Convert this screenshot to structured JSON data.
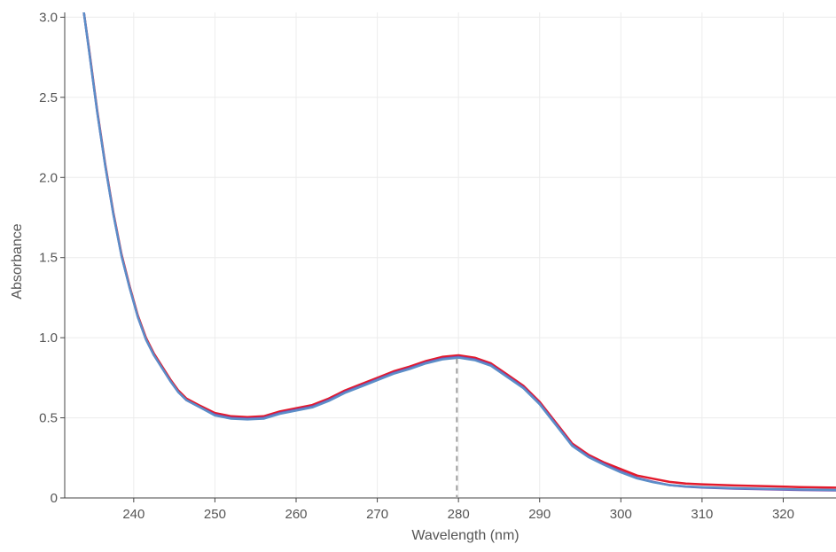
{
  "chart_data": {
    "type": "line",
    "title": "",
    "xlabel": "Wavelength (nm)",
    "ylabel": "Absorbance",
    "xlim": [
      231.5,
      326.5
    ],
    "ylim": [
      0,
      3.03
    ],
    "x_ticks": [
      240,
      250,
      260,
      270,
      280,
      290,
      300,
      310,
      320
    ],
    "y_ticks": [
      0,
      0.5,
      1.0,
      1.5,
      2.0,
      2.5,
      3.0
    ],
    "x_tick_labels": [
      "240",
      "250",
      "260",
      "270",
      "280",
      "290",
      "300",
      "310",
      "320"
    ],
    "y_tick_labels": [
      "0",
      "0.5",
      "1.0",
      "1.5",
      "2.0",
      "2.5",
      "3.0"
    ],
    "grid": true,
    "legend": "none",
    "marker_line": {
      "x": 279.8,
      "y_top": 0.87,
      "style": "dashed",
      "color": "#9e9e9e"
    },
    "series": [
      {
        "color": "#e31a2c",
        "points": [
          [
            233.8,
            3.05
          ],
          [
            234.5,
            2.8
          ],
          [
            235.5,
            2.42
          ],
          [
            236.5,
            2.08
          ],
          [
            237.5,
            1.78
          ],
          [
            238.5,
            1.52
          ],
          [
            239.5,
            1.32
          ],
          [
            240.5,
            1.14
          ],
          [
            241.5,
            1.0
          ],
          [
            242.5,
            0.9
          ],
          [
            243.5,
            0.82
          ],
          [
            244.5,
            0.74
          ],
          [
            245.5,
            0.67
          ],
          [
            246.5,
            0.62
          ],
          [
            248,
            0.58
          ],
          [
            250,
            0.53
          ],
          [
            252,
            0.51
          ],
          [
            254,
            0.505
          ],
          [
            256,
            0.51
          ],
          [
            258,
            0.54
          ],
          [
            260,
            0.56
          ],
          [
            262,
            0.58
          ],
          [
            264,
            0.62
          ],
          [
            266,
            0.67
          ],
          [
            268,
            0.71
          ],
          [
            270,
            0.75
          ],
          [
            272,
            0.79
          ],
          [
            274,
            0.82
          ],
          [
            276,
            0.855
          ],
          [
            278,
            0.88
          ],
          [
            280,
            0.89
          ],
          [
            282,
            0.875
          ],
          [
            284,
            0.84
          ],
          [
            286,
            0.77
          ],
          [
            288,
            0.7
          ],
          [
            290,
            0.6
          ],
          [
            292,
            0.47
          ],
          [
            294,
            0.34
          ],
          [
            296,
            0.27
          ],
          [
            298,
            0.22
          ],
          [
            300,
            0.18
          ],
          [
            302,
            0.14
          ],
          [
            304,
            0.12
          ],
          [
            306,
            0.1
          ],
          [
            308,
            0.09
          ],
          [
            310,
            0.085
          ],
          [
            314,
            0.078
          ],
          [
            318,
            0.073
          ],
          [
            322,
            0.068
          ],
          [
            326.5,
            0.064
          ]
        ]
      },
      {
        "color": "#7b4fb0",
        "points": [
          [
            233.8,
            3.05
          ],
          [
            234.5,
            2.79
          ],
          [
            235.5,
            2.41
          ],
          [
            236.5,
            2.07
          ],
          [
            237.5,
            1.77
          ],
          [
            238.5,
            1.51
          ],
          [
            239.5,
            1.31
          ],
          [
            240.5,
            1.13
          ],
          [
            241.5,
            0.99
          ],
          [
            242.5,
            0.89
          ],
          [
            243.5,
            0.81
          ],
          [
            244.5,
            0.73
          ],
          [
            245.5,
            0.66
          ],
          [
            246.5,
            0.61
          ],
          [
            248,
            0.57
          ],
          [
            250,
            0.52
          ],
          [
            252,
            0.5
          ],
          [
            254,
            0.495
          ],
          [
            256,
            0.5
          ],
          [
            258,
            0.53
          ],
          [
            260,
            0.55
          ],
          [
            262,
            0.57
          ],
          [
            264,
            0.61
          ],
          [
            266,
            0.66
          ],
          [
            268,
            0.7
          ],
          [
            270,
            0.74
          ],
          [
            272,
            0.78
          ],
          [
            274,
            0.81
          ],
          [
            276,
            0.845
          ],
          [
            278,
            0.87
          ],
          [
            280,
            0.88
          ],
          [
            282,
            0.865
          ],
          [
            284,
            0.83
          ],
          [
            286,
            0.76
          ],
          [
            288,
            0.69
          ],
          [
            290,
            0.59
          ],
          [
            292,
            0.46
          ],
          [
            294,
            0.33
          ],
          [
            296,
            0.26
          ],
          [
            298,
            0.21
          ],
          [
            300,
            0.165
          ],
          [
            302,
            0.125
          ],
          [
            304,
            0.1
          ],
          [
            306,
            0.08
          ],
          [
            308,
            0.07
          ],
          [
            310,
            0.065
          ],
          [
            314,
            0.058
          ],
          [
            318,
            0.054
          ],
          [
            322,
            0.05
          ],
          [
            326.5,
            0.047
          ]
        ]
      },
      {
        "color": "#5b8ec8",
        "points": [
          [
            233.8,
            3.05
          ],
          [
            234.5,
            2.79
          ],
          [
            235.5,
            2.41
          ],
          [
            236.5,
            2.07
          ],
          [
            237.5,
            1.77
          ],
          [
            238.5,
            1.51
          ],
          [
            239.5,
            1.31
          ],
          [
            240.5,
            1.13
          ],
          [
            241.5,
            0.99
          ],
          [
            242.5,
            0.89
          ],
          [
            243.5,
            0.81
          ],
          [
            244.5,
            0.73
          ],
          [
            245.5,
            0.66
          ],
          [
            246.5,
            0.61
          ],
          [
            248,
            0.57
          ],
          [
            250,
            0.515
          ],
          [
            252,
            0.495
          ],
          [
            254,
            0.49
          ],
          [
            256,
            0.495
          ],
          [
            258,
            0.525
          ],
          [
            260,
            0.545
          ],
          [
            262,
            0.565
          ],
          [
            264,
            0.605
          ],
          [
            266,
            0.655
          ],
          [
            268,
            0.695
          ],
          [
            270,
            0.735
          ],
          [
            272,
            0.775
          ],
          [
            274,
            0.805
          ],
          [
            276,
            0.84
          ],
          [
            278,
            0.865
          ],
          [
            280,
            0.875
          ],
          [
            282,
            0.86
          ],
          [
            284,
            0.825
          ],
          [
            286,
            0.755
          ],
          [
            288,
            0.685
          ],
          [
            290,
            0.585
          ],
          [
            292,
            0.455
          ],
          [
            294,
            0.325
          ],
          [
            296,
            0.255
          ],
          [
            298,
            0.205
          ],
          [
            300,
            0.16
          ],
          [
            302,
            0.122
          ],
          [
            304,
            0.098
          ],
          [
            306,
            0.08
          ],
          [
            308,
            0.072
          ],
          [
            310,
            0.067
          ],
          [
            314,
            0.061
          ],
          [
            318,
            0.057
          ],
          [
            322,
            0.053
          ],
          [
            326.5,
            0.05
          ]
        ]
      }
    ]
  }
}
